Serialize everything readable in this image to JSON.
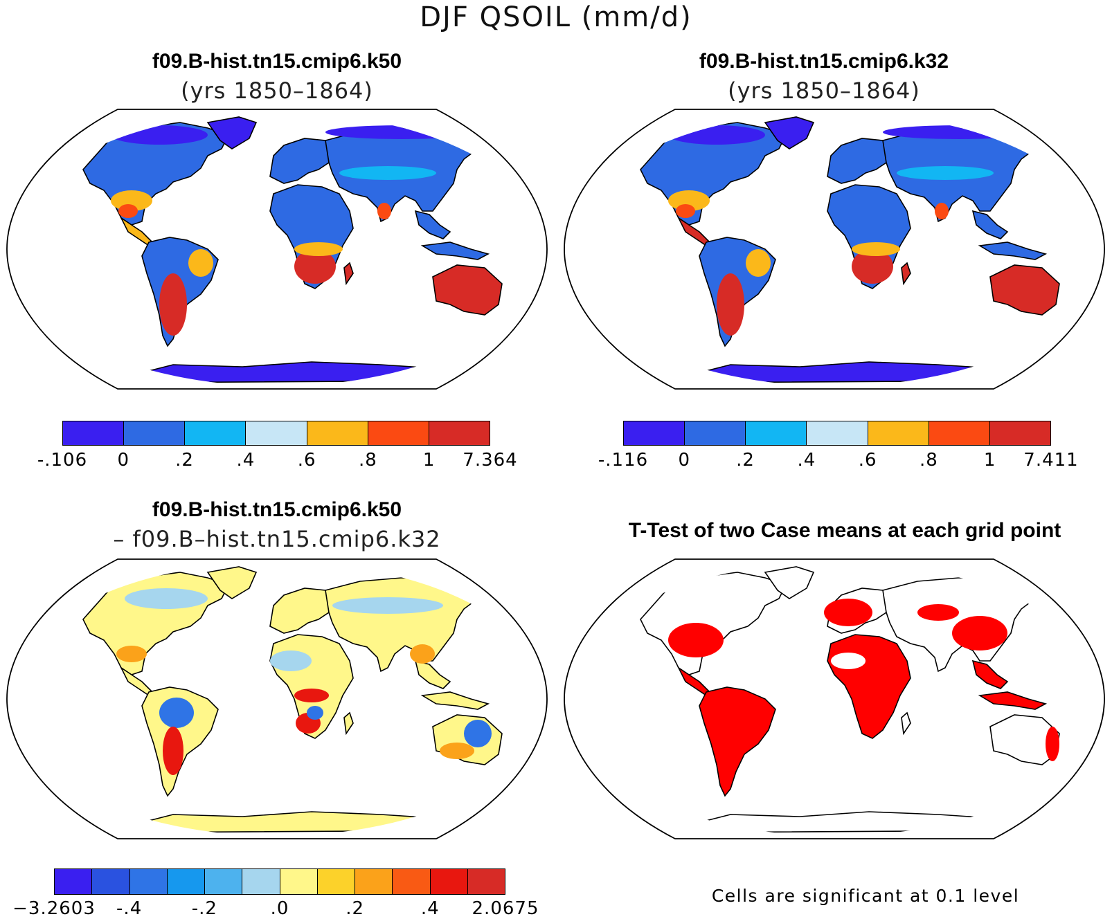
{
  "main_title": "DJF QSOIL (mm/d)",
  "panels": [
    {
      "title": "f09.B-hist.tn15.cmip6.k50",
      "subtitle": "(yrs 1850–1864)"
    },
    {
      "title": "f09.B-hist.tn15.cmip6.k32",
      "subtitle": "(yrs 1850–1864)"
    },
    {
      "title": "f09.B-hist.tn15.cmip6.k50",
      "subtitle": "– f09.B–hist.tn15.cmip6.k32"
    },
    {
      "title": "T-Test of two Case means at each grid point",
      "subtitle": ""
    }
  ],
  "colorbars": [
    {
      "colors": [
        "#3a1ff0",
        "#2e6ae3",
        "#12b6f3",
        "#c7e6f6",
        "#fbb81a",
        "#fb4a12",
        "#d72b26"
      ],
      "labels": [
        "-.106",
        "0",
        ".2",
        ".4",
        ".6",
        ".8",
        "1",
        "7.364"
      ]
    },
    {
      "colors": [
        "#3a1ff0",
        "#2e6ae3",
        "#12b6f3",
        "#c7e6f6",
        "#fbb81a",
        "#fb4a12",
        "#d72b26"
      ],
      "labels": [
        "-.116",
        "0",
        ".2",
        ".4",
        ".6",
        ".8",
        "1",
        "7.411"
      ]
    },
    {
      "colors": [
        "#3a1ff0",
        "#2a52e0",
        "#2f74e6",
        "#1698ee",
        "#4db2ee",
        "#a6d6ee",
        "#fff78a",
        "#fcd22a",
        "#fba21a",
        "#f95a14",
        "#e8170f",
        "#d72b26"
      ],
      "labels": [
        "−3.2603",
        "-.4",
        "-.2",
        ".0",
        ".2",
        ".4",
        "2.0675"
      ],
      "label_edges": [
        0,
        2,
        4,
        6,
        8,
        10,
        12
      ]
    }
  ],
  "footnote": "Cells are significant at 0.1 level",
  "map_colors": {
    "coast": "#000000",
    "ocean": "#ffffff",
    "panel1": {
      "arctic": "#3a1ff0",
      "northern": "#2e6ae3",
      "midlat": "#12b6f3",
      "subtropic": "#fbb81a",
      "southern": "#d72b26",
      "hot": "#fb4a12",
      "tropics": "#2e6ae3",
      "antarctica": "#3a1ff0"
    },
    "panel3": {
      "base": "#fff78a",
      "cool": "#a6d6ee",
      "warm": "#fba21a",
      "hot": "#e8170f",
      "cold": "#2f74e6"
    },
    "panel4": {
      "signif": "#ff0000",
      "nonsig": "#ffffff"
    }
  }
}
